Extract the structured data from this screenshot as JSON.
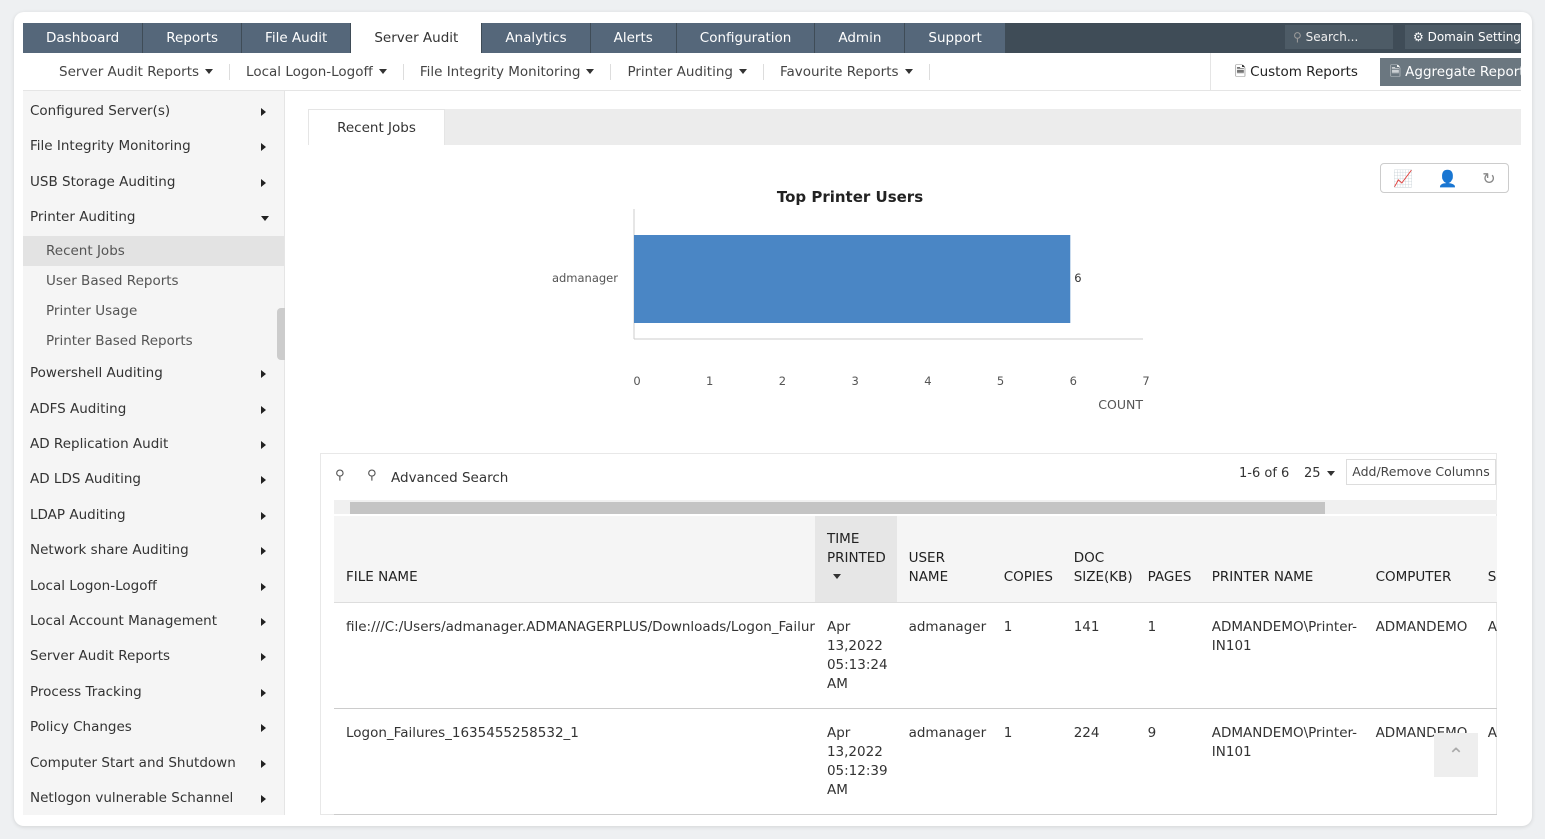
{
  "topnav": {
    "tabs": [
      "Dashboard",
      "Reports",
      "File Audit",
      "Server Audit",
      "Analytics",
      "Alerts",
      "Configuration",
      "Admin",
      "Support"
    ],
    "active": "Server Audit",
    "search_placeholder": "Search...",
    "domain_settings": "Domain Settings"
  },
  "subnav": {
    "items": [
      "Server Audit Reports",
      "Local Logon-Logoff",
      "File Integrity Monitoring",
      "Printer Auditing",
      "Favourite Reports"
    ],
    "custom_reports": "Custom Reports",
    "aggregate_reports": "Aggregate Reports"
  },
  "sidebar": {
    "items": [
      {
        "label": "Configured Server(s)"
      },
      {
        "label": "File Integrity Monitoring"
      },
      {
        "label": "USB Storage Auditing"
      },
      {
        "label": "Printer Auditing",
        "expanded": true,
        "children": [
          "Recent Jobs",
          "User Based Reports",
          "Printer Usage",
          "Printer Based Reports"
        ],
        "active_child": "Recent Jobs"
      },
      {
        "label": "Powershell Auditing"
      },
      {
        "label": "ADFS Auditing"
      },
      {
        "label": "AD Replication Audit"
      },
      {
        "label": "AD LDS Auditing"
      },
      {
        "label": "LDAP Auditing"
      },
      {
        "label": "Network share Auditing"
      },
      {
        "label": "Local Logon-Logoff"
      },
      {
        "label": "Local Account Management"
      },
      {
        "label": "Server Audit Reports"
      },
      {
        "label": "Process Tracking"
      },
      {
        "label": "Policy Changes"
      },
      {
        "label": "Computer Start and Shutdown"
      },
      {
        "label": "Netlogon vulnerable Schannel"
      }
    ]
  },
  "main": {
    "tab": "Recent Jobs"
  },
  "chart_data": {
    "type": "bar",
    "orientation": "horizontal",
    "title": "Top Printer Users",
    "categories": [
      "admanager"
    ],
    "values": [
      6
    ],
    "xlabel": "COUNT",
    "xlim": [
      0,
      7
    ],
    "xticks": [
      0,
      1,
      2,
      3,
      4,
      5,
      6,
      7
    ],
    "color": "#4a86c5",
    "data_labels": true,
    "grid": false
  },
  "grid": {
    "advanced_search": "Advanced Search",
    "pagination": "1-6 of 6",
    "page_size": "25",
    "add_remove_columns": "Add/Remove Columns",
    "columns": [
      "FILE NAME",
      "TIME PRINTED",
      "USER NAME",
      "COPIES",
      "DOC SIZE(KB)",
      "PAGES",
      "PRINTER NAME",
      "COMPUTER",
      "S"
    ],
    "rows": [
      [
        "file:///C:/Users/admanager.ADMANAGERPLUS/Downloads/Logon_Failur",
        "Apr 13,2022 05:13:24 AM",
        "admanager",
        "1",
        "141",
        "1",
        "ADMANDEMO\\Printer-IN101",
        "ADMANDEMO",
        "A"
      ],
      [
        "Logon_Failures_1635455258532_1",
        "Apr 13,2022 05:12:39 AM",
        "admanager",
        "1",
        "224",
        "9",
        "ADMANDEMO\\Printer-IN101",
        "ADMANDEMO",
        "A"
      ]
    ]
  }
}
